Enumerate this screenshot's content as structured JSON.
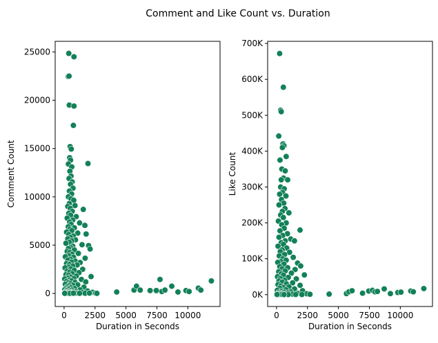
{
  "figure": {
    "suptitle": "Comment and Like Count vs. Duration"
  },
  "colors": {
    "marker": "#138158",
    "marker_edge": "#ffffff",
    "axes_edge": "#000000"
  },
  "chart_data": [
    {
      "type": "scatter",
      "xlabel": "Duration in Seconds",
      "ylabel": "Comment Count",
      "xlim": [
        -720,
        12600
      ],
      "ylim": [
        -1350,
        26100
      ],
      "xticks": [
        0,
        2500,
        5000,
        7500,
        10000
      ],
      "xtick_labels": [
        "0",
        "2500",
        "5000",
        "7500",
        "10000"
      ],
      "yticks": [
        0,
        5000,
        10000,
        15000,
        20000,
        25000
      ],
      "ytick_labels": [
        "0",
        "5000",
        "10000",
        "15000",
        "20000",
        "25000"
      ],
      "grid": false,
      "points": [
        [
          380,
          24850
        ],
        [
          800,
          24500
        ],
        [
          330,
          22450
        ],
        [
          400,
          22500
        ],
        [
          420,
          19500
        ],
        [
          800,
          19400
        ],
        [
          750,
          17400
        ],
        [
          490,
          15200
        ],
        [
          580,
          14950
        ],
        [
          450,
          14050
        ],
        [
          520,
          13800
        ],
        [
          350,
          13400
        ],
        [
          1930,
          13450
        ],
        [
          620,
          13100
        ],
        [
          470,
          12650
        ],
        [
          560,
          12150
        ],
        [
          400,
          11900
        ],
        [
          650,
          11550
        ],
        [
          520,
          11300
        ],
        [
          720,
          10900
        ],
        [
          430,
          10600
        ],
        [
          610,
          10300
        ],
        [
          350,
          10000
        ],
        [
          560,
          9800
        ],
        [
          780,
          9650
        ],
        [
          420,
          9300
        ],
        [
          880,
          9100
        ],
        [
          300,
          9000
        ],
        [
          500,
          8800
        ],
        [
          1550,
          8700
        ],
        [
          660,
          8500
        ],
        [
          380,
          8300
        ],
        [
          520,
          8100
        ],
        [
          980,
          7950
        ],
        [
          250,
          7800
        ],
        [
          700,
          7600
        ],
        [
          450,
          7400
        ],
        [
          1250,
          7300
        ],
        [
          560,
          7150
        ],
        [
          1680,
          7050
        ],
        [
          340,
          6900
        ],
        [
          830,
          6800
        ],
        [
          470,
          6650
        ],
        [
          620,
          6500
        ],
        [
          200,
          6350
        ],
        [
          1100,
          6250
        ],
        [
          380,
          6100
        ],
        [
          1780,
          6150
        ],
        [
          740,
          5950
        ],
        [
          500,
          5800
        ],
        [
          300,
          5650
        ],
        [
          920,
          5550
        ],
        [
          610,
          5450
        ],
        [
          420,
          5300
        ],
        [
          150,
          5200
        ],
        [
          1450,
          5050
        ],
        [
          1980,
          4950
        ],
        [
          700,
          4900
        ],
        [
          520,
          4750
        ],
        [
          350,
          4650
        ],
        [
          2100,
          4600
        ],
        [
          830,
          4500
        ],
        [
          250,
          4350
        ],
        [
          460,
          4250
        ],
        [
          1150,
          4150
        ],
        [
          640,
          4050
        ],
        [
          380,
          3900
        ],
        [
          100,
          3800
        ],
        [
          760,
          3750
        ],
        [
          1700,
          3650
        ],
        [
          500,
          3550
        ],
        [
          300,
          3450
        ],
        [
          900,
          3350
        ],
        [
          600,
          3250
        ],
        [
          1300,
          3200
        ],
        [
          200,
          3100
        ],
        [
          430,
          3000
        ],
        [
          1050,
          2950
        ],
        [
          700,
          2850
        ],
        [
          350,
          2750
        ],
        [
          80,
          2650
        ],
        [
          550,
          2550
        ],
        [
          1500,
          2500
        ],
        [
          820,
          2400
        ],
        [
          250,
          2300
        ],
        [
          450,
          2200
        ],
        [
          1200,
          2150
        ],
        [
          650,
          2050
        ],
        [
          150,
          1950
        ],
        [
          380,
          1900
        ],
        [
          980,
          1800
        ],
        [
          2180,
          1750
        ],
        [
          520,
          1700
        ],
        [
          280,
          1600
        ],
        [
          780,
          1550
        ],
        [
          50,
          1500
        ],
        [
          1400,
          1450
        ],
        [
          420,
          1400
        ],
        [
          620,
          1300
        ],
        [
          200,
          1250
        ],
        [
          1750,
          1200
        ],
        [
          880,
          1150
        ],
        [
          330,
          1100
        ],
        [
          520,
          1000
        ],
        [
          100,
          950
        ],
        [
          1100,
          900
        ],
        [
          700,
          850
        ],
        [
          400,
          800
        ],
        [
          250,
          700
        ],
        [
          1600,
          650
        ],
        [
          560,
          600
        ],
        [
          150,
          550
        ],
        [
          850,
          500
        ],
        [
          380,
          450
        ],
        [
          60,
          400
        ],
        [
          1300,
          380
        ],
        [
          620,
          350
        ],
        [
          200,
          300
        ],
        [
          450,
          250
        ],
        [
          1900,
          250
        ],
        [
          950,
          200
        ],
        [
          300,
          180
        ],
        [
          100,
          150
        ],
        [
          700,
          130
        ],
        [
          2300,
          120
        ],
        [
          520,
          100
        ],
        [
          1500,
          90
        ],
        [
          250,
          80
        ],
        [
          80,
          70
        ],
        [
          400,
          60
        ],
        [
          1100,
          50
        ],
        [
          600,
          40
        ],
        [
          2550,
          40
        ],
        [
          150,
          30
        ],
        [
          900,
          30
        ],
        [
          350,
          20
        ],
        [
          1700,
          20
        ],
        [
          500,
          10
        ],
        [
          2650,
          10
        ],
        [
          50,
          10
        ],
        [
          1250,
          15
        ],
        [
          750,
          25
        ],
        [
          2050,
          35
        ],
        [
          4250,
          150
        ],
        [
          5650,
          350
        ],
        [
          5850,
          750
        ],
        [
          6150,
          350
        ],
        [
          6950,
          300
        ],
        [
          7450,
          300
        ],
        [
          7750,
          1450
        ],
        [
          7900,
          200
        ],
        [
          8150,
          350
        ],
        [
          8700,
          750
        ],
        [
          9200,
          150
        ],
        [
          9850,
          300
        ],
        [
          10100,
          200
        ],
        [
          10850,
          550
        ],
        [
          11050,
          350
        ],
        [
          11900,
          1300
        ]
      ]
    },
    {
      "type": "scatter",
      "xlabel": "Duration in Seconds",
      "ylabel": "Like Count",
      "xlim": [
        -720,
        12600
      ],
      "ylim": [
        -33000,
        706000
      ],
      "xticks": [
        0,
        2500,
        5000,
        7500,
        10000
      ],
      "xtick_labels": [
        "0",
        "2500",
        "5000",
        "7500",
        "10000"
      ],
      "yticks": [
        0,
        100000,
        200000,
        300000,
        400000,
        500000,
        600000,
        700000
      ],
      "ytick_labels": [
        "0K",
        "100K",
        "200K",
        "300K",
        "400K",
        "500K",
        "600K",
        "700K"
      ],
      "grid": false,
      "points": [
        [
          250,
          672000
        ],
        [
          550,
          578000
        ],
        [
          330,
          514000
        ],
        [
          380,
          510000
        ],
        [
          180,
          442000
        ],
        [
          520,
          420000
        ],
        [
          600,
          415000
        ],
        [
          470,
          410000
        ],
        [
          780,
          385000
        ],
        [
          280,
          375000
        ],
        [
          430,
          350000
        ],
        [
          700,
          345000
        ],
        [
          560,
          325000
        ],
        [
          380,
          320000
        ],
        [
          900,
          320000
        ],
        [
          330,
          300000
        ],
        [
          620,
          295000
        ],
        [
          480,
          285000
        ],
        [
          250,
          280000
        ],
        [
          760,
          275000
        ],
        [
          400,
          265000
        ],
        [
          580,
          255000
        ],
        [
          200,
          250000
        ],
        [
          680,
          240000
        ],
        [
          470,
          232000
        ],
        [
          1000,
          228000
        ],
        [
          330,
          222000
        ],
        [
          550,
          215000
        ],
        [
          150,
          205000
        ],
        [
          780,
          200000
        ],
        [
          420,
          195000
        ],
        [
          1900,
          180000
        ],
        [
          620,
          185000
        ],
        [
          280,
          178000
        ],
        [
          880,
          170000
        ],
        [
          500,
          165000
        ],
        [
          200,
          160000
        ],
        [
          1150,
          155000
        ],
        [
          700,
          150000
        ],
        [
          380,
          145000
        ],
        [
          1450,
          150000
        ],
        [
          560,
          140000
        ],
        [
          120,
          135000
        ],
        [
          820,
          130000
        ],
        [
          450,
          125000
        ],
        [
          300,
          120000
        ],
        [
          1050,
          118000
        ],
        [
          650,
          112000
        ],
        [
          220,
          108000
        ],
        [
          1350,
          104000
        ],
        [
          500,
          100000
        ],
        [
          780,
          96000
        ],
        [
          350,
          92000
        ],
        [
          100,
          90000
        ],
        [
          1700,
          88000
        ],
        [
          600,
          85000
        ],
        [
          1950,
          80000
        ],
        [
          260,
          78000
        ],
        [
          900,
          75000
        ],
        [
          450,
          72000
        ],
        [
          1500,
          70000
        ],
        [
          700,
          66000
        ],
        [
          180,
          64000
        ],
        [
          1200,
          60000
        ],
        [
          380,
          58000
        ],
        [
          2250,
          55000
        ],
        [
          560,
          54000
        ],
        [
          80,
          50000
        ],
        [
          950,
          48000
        ],
        [
          300,
          45000
        ],
        [
          1600,
          44000
        ],
        [
          650,
          40000
        ],
        [
          200,
          38000
        ],
        [
          450,
          35000
        ],
        [
          1300,
          33000
        ],
        [
          800,
          30000
        ],
        [
          120,
          28000
        ],
        [
          1900,
          26000
        ],
        [
          350,
          24000
        ],
        [
          1000,
          22000
        ],
        [
          550,
          20000
        ],
        [
          250,
          18000
        ],
        [
          1450,
          16000
        ],
        [
          750,
          14000
        ],
        [
          60,
          12000
        ],
        [
          2100,
          11000
        ],
        [
          420,
          10000
        ],
        [
          1150,
          8000
        ],
        [
          620,
          7000
        ],
        [
          180,
          6000
        ],
        [
          900,
          5000
        ],
        [
          320,
          4000
        ],
        [
          1700,
          3500
        ],
        [
          500,
          3000
        ],
        [
          2450,
          2500
        ],
        [
          100,
          2000
        ],
        [
          1300,
          1500
        ],
        [
          720,
          1200
        ],
        [
          2700,
          1000
        ],
        [
          260,
          800
        ],
        [
          1550,
          600
        ],
        [
          450,
          500
        ],
        [
          40,
          400
        ],
        [
          950,
          300
        ],
        [
          2050,
          250
        ],
        [
          600,
          150
        ],
        [
          4250,
          1500
        ],
        [
          5650,
          3000
        ],
        [
          5850,
          8000
        ],
        [
          6100,
          11000
        ],
        [
          6950,
          4000
        ],
        [
          7450,
          10000
        ],
        [
          7750,
          12000
        ],
        [
          7950,
          8000
        ],
        [
          8150,
          9000
        ],
        [
          8700,
          16000
        ],
        [
          9200,
          3000
        ],
        [
          9800,
          6000
        ],
        [
          10050,
          7000
        ],
        [
          10850,
          10000
        ],
        [
          11050,
          8000
        ],
        [
          11900,
          17000
        ]
      ]
    }
  ]
}
